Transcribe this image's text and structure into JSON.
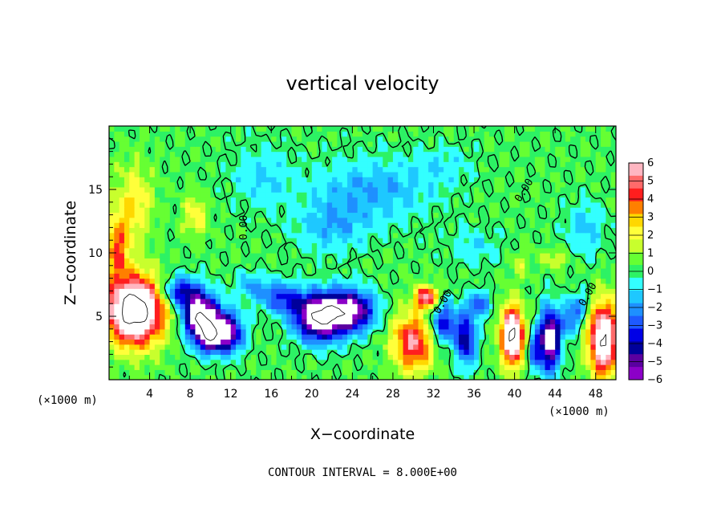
{
  "chart_data": {
    "type": "heatmap",
    "title": "vertical velocity",
    "xlabel": "X−coordinate",
    "ylabel": "Z−coordinate",
    "x_unit_label": "(×1000 m)",
    "xlim": [
      0,
      50
    ],
    "ylim": [
      0,
      20
    ],
    "x_ticks": [
      "4",
      "8",
      "12",
      "16",
      "20",
      "24",
      "28",
      "32",
      "36",
      "40",
      "44",
      "48"
    ],
    "y_ticks": [
      "5",
      "10",
      "15"
    ],
    "colorbar": {
      "labels": [
        "6",
        "5",
        "4",
        "3",
        "2",
        "1",
        "0",
        "−1",
        "−2",
        "−3",
        "−4",
        "−5",
        "−6"
      ],
      "min": -6,
      "max": 6,
      "colors": [
        "#ffb6c1",
        "#ff6a6a",
        "#ff1e1e",
        "#ff7f00",
        "#ffd700",
        "#ffff3a",
        "#c8ff2d",
        "#66ff33",
        "#2df264",
        "#33ffff",
        "#1ec8ff",
        "#1e90ff",
        "#1e5aff",
        "#0000e6",
        "#00009b",
        "#5a00a0",
        "#8c00c8"
      ]
    },
    "contour_label": "0.00",
    "footer": "CONTOUR INTERVAL = 8.000E+00",
    "extremes_kept": [
      {
        "x": 2.5,
        "z": 5.5,
        "w": 8,
        "kind": "updraft core"
      },
      {
        "x": 10,
        "z": 5,
        "w": -8,
        "kind": "downdraft core"
      },
      {
        "x": 21,
        "z": 5,
        "w": -8,
        "kind": "downdraft core"
      },
      {
        "x": 40.5,
        "z": 3,
        "w": 8,
        "kind": "updraft core"
      },
      {
        "x": 43.5,
        "z": 3,
        "w": -8,
        "kind": "downdraft core"
      },
      {
        "x": 49,
        "z": 3,
        "w": 8,
        "kind": "updraft core"
      }
    ]
  }
}
